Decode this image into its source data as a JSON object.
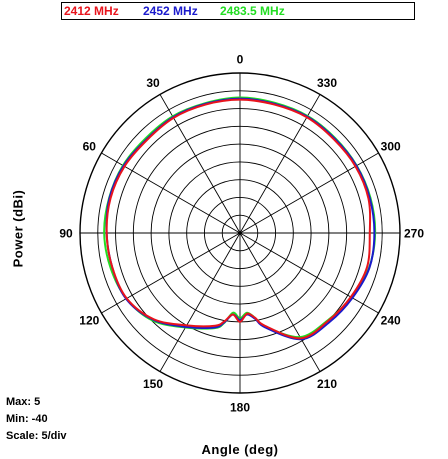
{
  "legend": [
    {
      "label": "2412 MHz",
      "color": "#e8141c"
    },
    {
      "label": "2452 MHz",
      "color": "#1a1acc"
    },
    {
      "label": "2483.5 MHz",
      "color": "#22dd22"
    }
  ],
  "ylabel": "Power  (dBi)",
  "xlabel": "Angle  (deg)",
  "stats": {
    "max": "Max: 5",
    "min": "Min: -40",
    "scale": "Scale: 5/div"
  },
  "chart_data": {
    "type": "polar-line",
    "angle_unit": "deg",
    "angle_direction": "counterclockwise, 0 at top",
    "radial_range_dbi": [
      -40,
      5
    ],
    "radial_step_dbi": 5,
    "angle_tick_labels": [
      "0",
      "30",
      "60",
      "90",
      "120",
      "150",
      "180",
      "210",
      "240",
      "270",
      "300",
      "330"
    ],
    "angles": [
      0,
      15,
      30,
      45,
      60,
      75,
      90,
      105,
      120,
      135,
      150,
      165,
      170,
      175,
      180,
      185,
      190,
      195,
      210,
      225,
      240,
      255,
      270,
      285,
      300,
      315,
      330,
      345
    ],
    "series": [
      {
        "name": "2412 MHz",
        "color": "#e8141c",
        "values": [
          -2.5,
          -2.6,
          -2.6,
          -3,
          -2.5,
          -2.3,
          -2.5,
          -2.8,
          -3.2,
          -5.7,
          -10,
          -13,
          -14.8,
          -17,
          -15,
          -17.2,
          -15.8,
          -13,
          -5.8,
          -5,
          -4,
          -3,
          -3.5,
          -2.6,
          -2.5,
          -2.7,
          -2.4,
          -2.6
        ]
      },
      {
        "name": "2452 MHz",
        "color": "#1a1acc",
        "values": [
          -2.2,
          -2.4,
          -2.4,
          -2.8,
          -2.2,
          -2,
          -2.5,
          -2.8,
          -3,
          -5.5,
          -9.5,
          -12.5,
          -14.5,
          -17,
          -15.5,
          -17,
          -15.5,
          -12.5,
          -5.5,
          -4.5,
          -3.5,
          -2.3,
          -2.2,
          -2.2,
          -2.2,
          -2.4,
          -2.2,
          -2.4
        ]
      },
      {
        "name": "2483.5 MHz",
        "color": "#22dd22",
        "values": [
          -1.9,
          -2.2,
          -2.1,
          -2.4,
          -2,
          -1.9,
          -1.8,
          -2.3,
          -3.1,
          -5.2,
          -9.3,
          -12.3,
          -14.3,
          -17.5,
          -16,
          -17.5,
          -15.8,
          -12.8,
          -6.2,
          -5.2,
          -3.8,
          -2.4,
          -2,
          -2,
          -2.1,
          -2.2,
          -2,
          -2.1
        ]
      }
    ]
  }
}
